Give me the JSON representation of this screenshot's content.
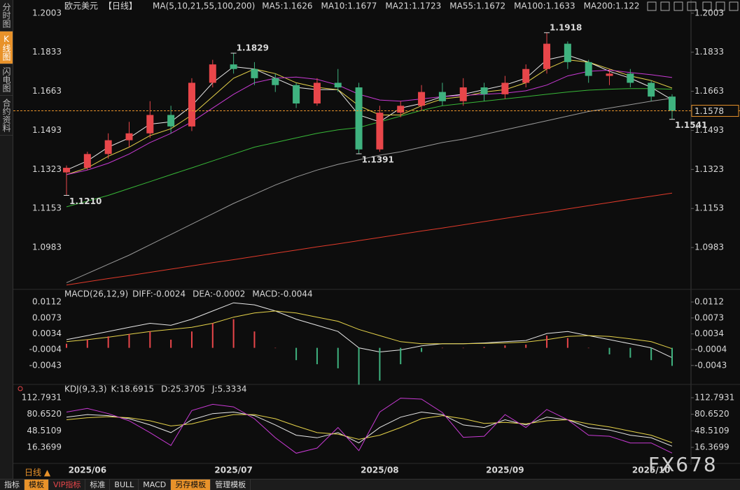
{
  "ui": {
    "sidebar_tabs": [
      "分时图",
      "K线图",
      "闪电图",
      "合约资料"
    ],
    "symbol": "欧元美元",
    "period": "【日线】",
    "period_selector": "日线 ▲",
    "watermark": "FX678",
    "bottom_tabs": [
      "指标",
      "模板",
      "VIP指标",
      "标准",
      "BULL",
      "MACD",
      "另存模板",
      "管理模板"
    ]
  },
  "chart_data": [
    {
      "type": "candlestick",
      "legend_title": "MA(5,10,21,55,100,200)",
      "categories": [
        null,
        "2025/06",
        null,
        null,
        null,
        null,
        null,
        null,
        "2025/07",
        null,
        null,
        null,
        null,
        null,
        null,
        "2025/08",
        null,
        null,
        null,
        null,
        null,
        "2025/09",
        null,
        null,
        null,
        null,
        null,
        null,
        "2025/10",
        null
      ],
      "open": [
        1.131,
        1.133,
        1.139,
        1.145,
        1.148,
        1.156,
        1.151,
        1.17,
        1.178,
        1.176,
        1.172,
        1.169,
        1.161,
        1.17,
        1.168,
        1.141,
        1.157,
        1.16,
        1.166,
        1.162,
        1.168,
        1.165,
        1.17,
        1.176,
        1.187,
        1.179,
        1.173,
        1.174,
        1.17,
        1.164
      ],
      "high": [
        1.134,
        1.14,
        1.148,
        1.153,
        1.162,
        1.16,
        1.172,
        1.18,
        1.1829,
        1.179,
        1.174,
        1.17,
        1.172,
        1.176,
        1.17,
        1.16,
        1.162,
        1.169,
        1.17,
        1.172,
        1.17,
        1.173,
        1.178,
        1.1918,
        1.188,
        1.18,
        1.176,
        1.176,
        1.171,
        1.165
      ],
      "low": [
        1.121,
        1.132,
        1.137,
        1.142,
        1.146,
        1.148,
        1.149,
        1.168,
        1.174,
        1.169,
        1.166,
        1.159,
        1.16,
        1.166,
        1.1391,
        1.14,
        1.155,
        1.158,
        1.16,
        1.16,
        1.162,
        1.163,
        1.168,
        1.174,
        1.176,
        1.17,
        1.169,
        1.168,
        1.162,
        1.1541
      ],
      "close": [
        1.133,
        1.139,
        1.145,
        1.148,
        1.156,
        1.151,
        1.17,
        1.178,
        1.176,
        1.172,
        1.169,
        1.161,
        1.17,
        1.168,
        1.141,
        1.157,
        1.16,
        1.166,
        1.162,
        1.168,
        1.165,
        1.17,
        1.176,
        1.187,
        1.179,
        1.173,
        1.174,
        1.17,
        1.164,
        1.1578
      ],
      "up_color": "#e8464a",
      "down_color": "#3fb27f",
      "last_color": "#e8922a",
      "series": [
        {
          "name": "MA5:1.1626",
          "color": "#e8e8e8",
          "values": [
            1.132,
            1.136,
            1.142,
            1.146,
            1.152,
            1.153,
            1.16,
            1.17,
            1.177,
            1.176,
            1.172,
            1.168,
            1.167,
            1.167,
            1.156,
            1.153,
            1.159,
            1.161,
            1.164,
            1.165,
            1.167,
            1.169,
            1.172,
            1.18,
            1.182,
            1.179,
            1.175,
            1.172,
            1.168,
            1.1626
          ]
        },
        {
          "name": "MA10:1.1677",
          "color": "#e6d34a",
          "values": [
            1.13,
            1.133,
            1.138,
            1.142,
            1.147,
            1.15,
            1.156,
            1.164,
            1.172,
            1.176,
            1.174,
            1.17,
            1.168,
            1.167,
            1.16,
            1.156,
            1.156,
            1.16,
            1.163,
            1.164,
            1.166,
            1.167,
            1.17,
            1.176,
            1.18,
            1.179,
            1.176,
            1.173,
            1.171,
            1.1677
          ]
        },
        {
          "name": "MA21:1.1723",
          "color": "#c83ad4",
          "values": [
            1.13,
            1.132,
            1.135,
            1.139,
            1.144,
            1.148,
            1.153,
            1.159,
            1.165,
            1.17,
            1.172,
            1.1725,
            1.1715,
            1.169,
            1.165,
            1.1625,
            1.162,
            1.163,
            1.164,
            1.1645,
            1.165,
            1.1655,
            1.1665,
            1.169,
            1.173,
            1.175,
            1.1755,
            1.1745,
            1.1735,
            1.1723
          ]
        },
        {
          "name": "MA55:1.1672",
          "color": "#38b838",
          "values": [
            1.116,
            1.1185,
            1.121,
            1.124,
            1.127,
            1.13,
            1.133,
            1.136,
            1.139,
            1.142,
            1.144,
            1.146,
            1.148,
            1.1495,
            1.1505,
            1.153,
            1.1555,
            1.158,
            1.16,
            1.161,
            1.162,
            1.163,
            1.164,
            1.165,
            1.166,
            1.1668,
            1.1672,
            1.1675,
            1.1675,
            1.1672
          ]
        },
        {
          "name": "MA100:1.1633",
          "color": "#9a9a9a",
          "values": [
            1.083,
            1.087,
            1.091,
            1.095,
            1.0995,
            1.104,
            1.1085,
            1.113,
            1.1175,
            1.1215,
            1.1255,
            1.129,
            1.132,
            1.1345,
            1.1365,
            1.1385,
            1.14,
            1.142,
            1.144,
            1.1455,
            1.1475,
            1.1495,
            1.1515,
            1.1535,
            1.1555,
            1.1575,
            1.159,
            1.1605,
            1.162,
            1.1633
          ]
        },
        {
          "name": "MA200:1.122",
          "color": "#e03a2a",
          "values": [
            1.082,
            1.0834,
            1.0848,
            1.0861,
            1.0875,
            1.0889,
            1.0903,
            1.0917,
            1.093,
            1.0944,
            1.0958,
            1.0972,
            1.0986,
            1.0999,
            1.1013,
            1.1027,
            1.1041,
            1.1055,
            1.1068,
            1.1082,
            1.1096,
            1.111,
            1.1124,
            1.1137,
            1.1151,
            1.1165,
            1.1179,
            1.1193,
            1.1206,
            1.122
          ]
        }
      ],
      "annotations": [
        1.1829,
        1.1918,
        1.1391,
        1.1541,
        {
          "value": 1.121,
          "label": "1.1210"
        }
      ],
      "ylim": [
        1.0813,
        1.2036
      ],
      "yticks": [
        1.2003,
        1.1833,
        1.1663,
        1.1493,
        1.1323,
        1.1153,
        1.0983
      ]
    },
    {
      "type": "macd",
      "title": "MACD(26,12,9)",
      "up_color": "#e8464a",
      "down_color": "#3fb27f",
      "series": [
        {
          "name": "DIFF:-0.0024",
          "color": "#e8e8e8",
          "values": [
            0.002,
            0.003,
            0.004,
            0.005,
            0.006,
            0.0055,
            0.007,
            0.009,
            0.011,
            0.0105,
            0.009,
            0.007,
            0.0055,
            0.004,
            0.0,
            -0.001,
            -0.0005,
            0.0005,
            0.001,
            0.001,
            0.0012,
            0.0015,
            0.0018,
            0.0035,
            0.004,
            0.003,
            0.002,
            0.001,
            0.0,
            -0.0024
          ]
        },
        {
          "name": "DEA:-0.0002",
          "color": "#e6d34a",
          "values": [
            0.0015,
            0.002,
            0.0026,
            0.0033,
            0.004,
            0.0045,
            0.005,
            0.006,
            0.0075,
            0.0085,
            0.009,
            0.0085,
            0.0075,
            0.0065,
            0.0045,
            0.003,
            0.0015,
            0.001,
            0.001,
            0.001,
            0.0011,
            0.0012,
            0.0014,
            0.002,
            0.0028,
            0.003,
            0.0028,
            0.0022,
            0.0015,
            -0.0002
          ]
        },
        {
          "name": "MACD:-0.0044",
          "color": "#c83ad4",
          "style": "bar",
          "values": [
            0.001,
            0.002,
            0.0028,
            0.0034,
            0.004,
            0.002,
            0.004,
            0.006,
            0.007,
            0.004,
            0.0,
            -0.003,
            -0.004,
            -0.005,
            -0.009,
            -0.008,
            -0.004,
            -0.001,
            0.0,
            0.0,
            0.0002,
            0.0006,
            0.0008,
            0.003,
            0.0024,
            0.0,
            -0.0016,
            -0.0024,
            -0.003,
            -0.0044
          ]
        }
      ],
      "ylim": [
        -0.0086,
        0.0124
      ],
      "yticks": [
        0.0112,
        0.0073,
        0.0034,
        -0.0004,
        -0.0043
      ]
    },
    {
      "type": "line",
      "title": "KDJ(9,3,3)",
      "series": [
        {
          "name": "K:18.6915",
          "color": "#e8e8e8",
          "values": [
            75,
            80,
            78,
            72,
            60,
            45,
            70,
            82,
            85,
            78,
            60,
            40,
            35,
            45,
            25,
            55,
            75,
            85,
            80,
            60,
            55,
            70,
            60,
            75,
            70,
            55,
            50,
            40,
            35,
            18.6915
          ]
        },
        {
          "name": "D:25.3705",
          "color": "#e6d34a",
          "values": [
            70,
            74,
            76,
            74,
            68,
            58,
            62,
            72,
            80,
            80,
            72,
            58,
            45,
            42,
            32,
            40,
            55,
            72,
            78,
            72,
            63,
            65,
            62,
            68,
            70,
            62,
            56,
            48,
            40,
            25.3705
          ]
        },
        {
          "name": "J:5.3334",
          "color": "#c83ad4",
          "values": [
            85,
            92,
            82,
            68,
            45,
            20,
            88,
            100,
            95,
            72,
            35,
            5,
            15,
            55,
            10,
            85,
            112,
            110,
            84,
            36,
            38,
            80,
            55,
            90,
            70,
            40,
            38,
            25,
            25,
            5.3334
          ]
        }
      ],
      "ylim": [
        -10.75,
        125
      ],
      "yticks": [
        112.7931,
        {
          "value": 80.652,
          "label": "80.6520"
        },
        48.5109,
        16.3699
      ]
    }
  ]
}
